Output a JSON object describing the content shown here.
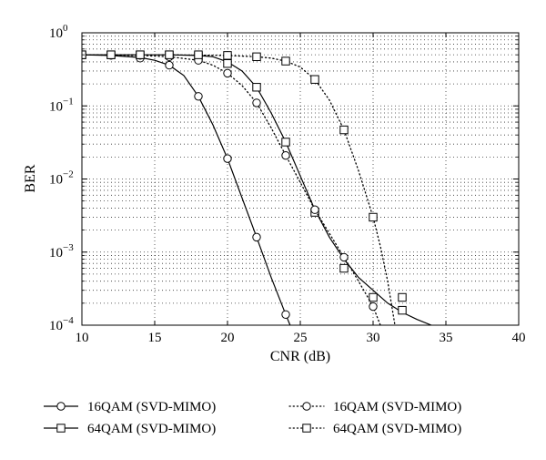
{
  "chart_data": {
    "type": "line",
    "xlabel": "CNR (dB)",
    "ylabel": "BER",
    "xlim": [
      10,
      40
    ],
    "ylim": [
      0.0001,
      1
    ],
    "yscale": "log",
    "grid": true,
    "xticks": [
      10,
      15,
      20,
      25,
      30,
      35,
      40
    ],
    "xtick_labels": [
      "10",
      "15",
      "20",
      "25",
      "30",
      "35",
      "40"
    ],
    "yticks": [
      0.0001,
      0.001,
      0.01,
      0.1,
      1
    ],
    "ytick_labels": [
      {
        "base": "10",
        "exp": "−4"
      },
      {
        "base": "10",
        "exp": "−3"
      },
      {
        "base": "10",
        "exp": "−2"
      },
      {
        "base": "10",
        "exp": "−1"
      },
      {
        "base": "10",
        "exp": "0"
      }
    ],
    "legend_position": "below",
    "series": [
      {
        "name": "16QAM (SVD-MIMO)",
        "line": "solid",
        "marker": "circle",
        "markers_x": [
          10,
          12,
          14,
          16,
          18,
          20,
          22,
          24
        ],
        "markers_y": [
          0.5,
          0.49,
          0.45,
          0.36,
          0.135,
          0.019,
          0.0016,
          0.00014
        ],
        "curve_x": [
          10,
          12,
          14,
          15,
          16,
          17,
          18,
          19,
          20,
          21,
          22,
          23,
          24,
          24.3
        ],
        "curve_y": [
          0.5,
          0.49,
          0.46,
          0.42,
          0.36,
          0.26,
          0.135,
          0.055,
          0.019,
          0.0055,
          0.0016,
          0.00045,
          0.00014,
          0.0001
        ]
      },
      {
        "name": "64QAM (SVD-MIMO)",
        "line": "solid",
        "marker": "square",
        "markers_x": [
          10,
          12,
          14,
          16,
          18,
          20,
          22,
          24,
          26,
          28,
          30,
          32
        ],
        "markers_y": [
          0.5,
          0.5,
          0.5,
          0.5,
          0.48,
          0.38,
          0.18,
          0.032,
          0.0035,
          0.0006,
          0.00024,
          0.00016
        ],
        "curve_x": [
          10,
          14,
          16,
          18,
          19,
          20,
          21,
          22,
          23,
          24,
          25,
          26,
          27,
          28,
          29,
          30,
          31,
          32,
          33,
          34
        ],
        "curve_y": [
          0.5,
          0.5,
          0.5,
          0.49,
          0.47,
          0.4,
          0.3,
          0.18,
          0.08,
          0.032,
          0.011,
          0.0038,
          0.0016,
          0.0008,
          0.00045,
          0.0003,
          0.0002,
          0.00015,
          0.00012,
          0.0001
        ]
      },
      {
        "name": "16QAM (SVD-MIMO)",
        "line": "dotted",
        "marker": "circle",
        "markers_x": [
          10,
          12,
          14,
          16,
          18,
          20,
          22,
          24,
          26,
          28,
          30
        ],
        "markers_y": [
          0.5,
          0.5,
          0.49,
          0.47,
          0.42,
          0.28,
          0.11,
          0.021,
          0.0038,
          0.00085,
          0.00018
        ],
        "curve_x": [
          10,
          14,
          16,
          18,
          19,
          20,
          21,
          22,
          23,
          24,
          25,
          26,
          27,
          28,
          29,
          30,
          30.5
        ],
        "curve_y": [
          0.5,
          0.49,
          0.47,
          0.42,
          0.36,
          0.28,
          0.19,
          0.11,
          0.05,
          0.021,
          0.009,
          0.0038,
          0.0018,
          0.00085,
          0.0004,
          0.00018,
          0.0001
        ]
      },
      {
        "name": "64QAM (SVD-MIMO)",
        "line": "dotted",
        "marker": "square",
        "markers_x": [
          10,
          12,
          14,
          16,
          18,
          20,
          22,
          24,
          26,
          28,
          30,
          32
        ],
        "markers_y": [
          0.5,
          0.5,
          0.5,
          0.5,
          0.5,
          0.49,
          0.47,
          0.41,
          0.23,
          0.047,
          0.003,
          0.00024
        ],
        "curve_x": [
          10,
          16,
          20,
          22,
          23,
          24,
          25,
          26,
          27,
          28,
          29,
          30,
          30.5,
          31,
          31.5
        ],
        "curve_y": [
          0.5,
          0.5,
          0.49,
          0.47,
          0.45,
          0.41,
          0.34,
          0.23,
          0.12,
          0.047,
          0.013,
          0.003,
          0.0012,
          0.0004,
          0.0001
        ]
      }
    ]
  }
}
